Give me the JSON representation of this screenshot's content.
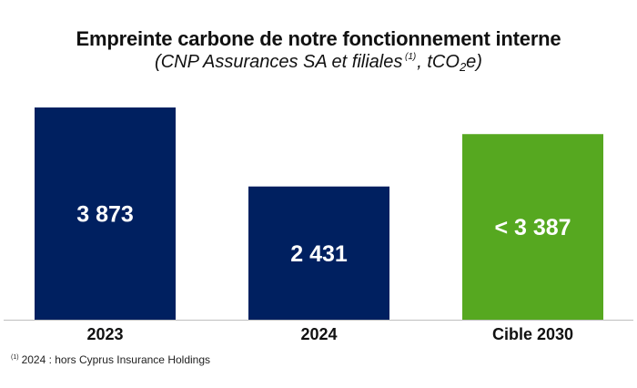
{
  "header": {
    "title": "Empreinte carbone de notre fonctionnement interne",
    "subtitle_prefix": "(CNP Assurances SA et filiales",
    "subtitle_note_mark": "(1)",
    "subtitle_unit_pre": ", tCO",
    "subtitle_unit_sub": "2",
    "subtitle_unit_post": "e)"
  },
  "footnote": {
    "mark": "(1)",
    "text": "2024 : hors Cyprus Insurance Holdings"
  },
  "colors": {
    "actual": "#002060",
    "target": "#56a820",
    "axis": "#bfbfbf"
  },
  "chart_data": {
    "type": "bar",
    "categories": [
      "2023",
      "2024",
      "Cible 2030"
    ],
    "values": [
      3873,
      2431,
      3387
    ],
    "value_labels": [
      "3 873",
      "2 431",
      "< 3 387"
    ],
    "title": "Empreinte carbone de notre fonctionnement interne",
    "subtitle": "(CNP Assurances SA et filiales (1), tCO2e)",
    "xlabel": "",
    "ylabel": "",
    "ylim": [
      0,
      3873
    ],
    "grid": false,
    "legend": "none"
  }
}
